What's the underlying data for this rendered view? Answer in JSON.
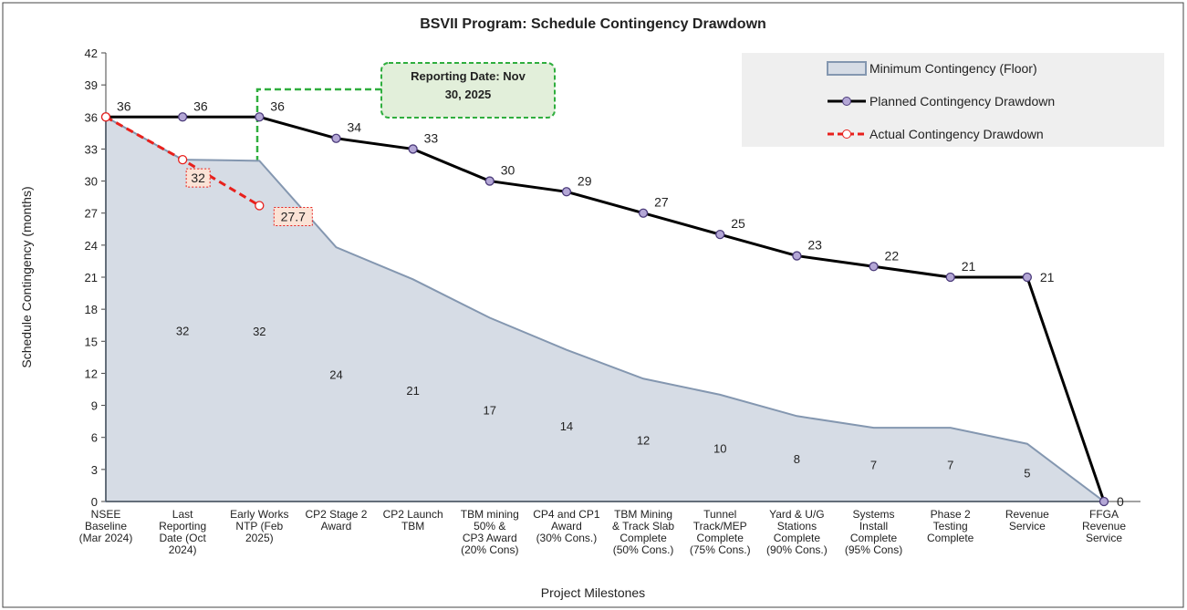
{
  "chart_data": {
    "type": "line",
    "title": "BSVII Program: Schedule Contingency  Drawdown",
    "x_label": "Project Milestones",
    "y_label": "Schedule Contingency (months)",
    "categories": [
      "NSEE\nBaseline\n(Mar 2024)",
      "Last\nReporting\nDate (Oct\n2024)",
      "Early Works\nNTP (Feb\n2025)",
      "CP2 Stage 2\nAward",
      "CP2 Launch\nTBM",
      "TBM mining\n50% &\nCP3 Award\n(20% Cons)",
      "CP4 and CP1\nAward\n(30% Cons.)",
      "TBM Mining\n& Track Slab\nComplete\n(50% Cons.)",
      "Tunnel\nTrack/MEP\nComplete\n(75% Cons.)",
      "Yard & U/G\nStations\nComplete\n(90% Cons.)",
      "Systems\nInstall\nComplete\n(95% Cons)",
      "Phase 2\nTesting\nComplete",
      "Revenue\nService",
      "FFGA\nRevenue\nService"
    ],
    "series": [
      {
        "name": "Minimum Contingency (Floor)",
        "kind": "area",
        "color": "#d6dce5",
        "edge": "#8497b0",
        "values": [
          36,
          32,
          31.9,
          23.8,
          20.8,
          17.2,
          14.2,
          11.5,
          10,
          8,
          6.9,
          6.9,
          5.4,
          0
        ],
        "value_labels": [
          null,
          "32",
          "32",
          "24",
          "21",
          "17",
          "14",
          "12",
          "10",
          "8",
          "7",
          "7",
          "5",
          null
        ]
      },
      {
        "name": "Planned Contingency Drawdown",
        "kind": "line",
        "color": "#000000",
        "marker": "#b4a7d6",
        "values": [
          36,
          36,
          36,
          34,
          33,
          30,
          29,
          27,
          25,
          23,
          22,
          21,
          21,
          0
        ]
      },
      {
        "name": "Actual Contingency Drawdown",
        "kind": "dashed",
        "color": "#e8201c",
        "marker": "#ffffff",
        "values": [
          36,
          32,
          27.7,
          null,
          null,
          null,
          null,
          null,
          null,
          null,
          null,
          null,
          null,
          null
        ],
        "value_labels": [
          null,
          "32",
          "27.7",
          null,
          null,
          null,
          null,
          null,
          null,
          null,
          null,
          null,
          null,
          null
        ]
      }
    ],
    "annotation": "Reporting Date: Nov\n30, 2025",
    "ylim": [
      0,
      42
    ],
    "yticks": [
      0,
      3,
      6,
      9,
      12,
      15,
      18,
      21,
      24,
      27,
      30,
      33,
      36,
      39,
      42
    ],
    "legend": "top-right"
  }
}
